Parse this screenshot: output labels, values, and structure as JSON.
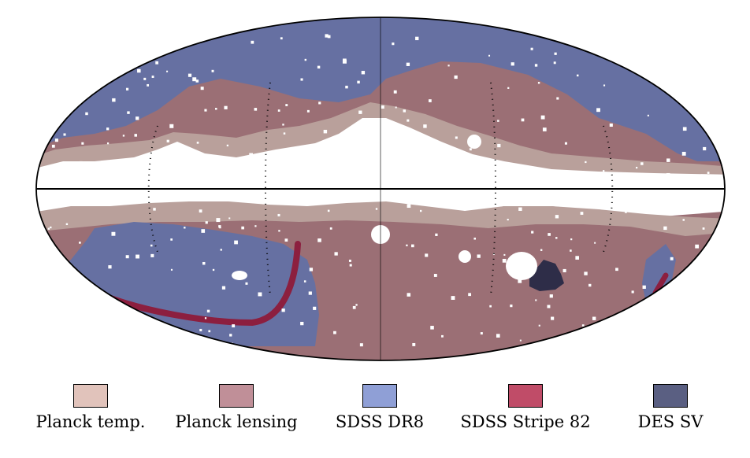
{
  "legend": {
    "items": [
      {
        "label": "Planck temp.",
        "color": "#e1c3bb"
      },
      {
        "label": "Planck lensing",
        "color": "#c08f98"
      },
      {
        "label": "SDSS DR8",
        "color": "#8f9fd6"
      },
      {
        "label": "SDSS Stripe 82",
        "color": "#c04c68"
      },
      {
        "label": "DES SV",
        "color": "#5a5f82"
      }
    ]
  },
  "map_colors": {
    "planck_temp": "#b9a09b",
    "planck_lensing": "#9b6f75",
    "sdss_dr8": "#6670a2",
    "sdss_stripe82": "#8c1f3f",
    "des_sv": "#2e2d48",
    "mask": "#ffffff"
  },
  "projection": "mollweide"
}
